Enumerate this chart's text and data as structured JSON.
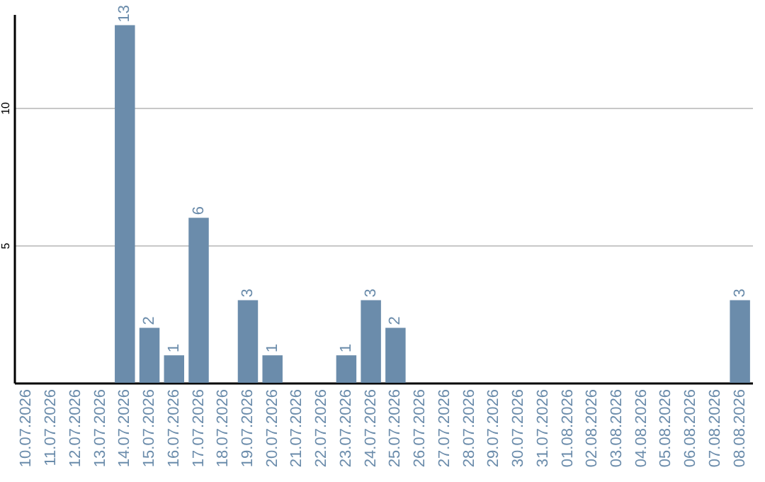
{
  "chart_data": {
    "type": "bar",
    "categories": [
      "10.07.2026",
      "11.07.2026",
      "12.07.2026",
      "13.07.2026",
      "14.07.2026",
      "15.07.2026",
      "16.07.2026",
      "17.07.2026",
      "18.07.2026",
      "19.07.2026",
      "20.07.2026",
      "21.07.2026",
      "22.07.2026",
      "23.07.2026",
      "24.07.2026",
      "25.07.2026",
      "26.07.2026",
      "27.07.2026",
      "28.07.2026",
      "29.07.2026",
      "30.07.2026",
      "31.07.2026",
      "01.08.2026",
      "02.08.2026",
      "03.08.2026",
      "04.08.2026",
      "05.08.2026",
      "06.08.2026",
      "07.08.2026",
      "08.08.2026"
    ],
    "values": [
      0,
      0,
      0,
      0,
      13,
      2,
      1,
      6,
      0,
      3,
      1,
      0,
      0,
      1,
      3,
      2,
      0,
      0,
      0,
      0,
      0,
      0,
      0,
      0,
      0,
      0,
      0,
      0,
      0,
      3
    ],
    "value_labels": [
      null,
      null,
      null,
      null,
      "13",
      "2",
      "1",
      "6",
      null,
      "3",
      "1",
      null,
      null,
      "1",
      "3",
      "2",
      null,
      null,
      null,
      null,
      null,
      null,
      null,
      null,
      null,
      null,
      null,
      null,
      null,
      "3"
    ],
    "color": "#6b8cab",
    "ylim": [
      0,
      13.4
    ],
    "yticks": [
      5,
      10
    ],
    "grid": "y"
  }
}
